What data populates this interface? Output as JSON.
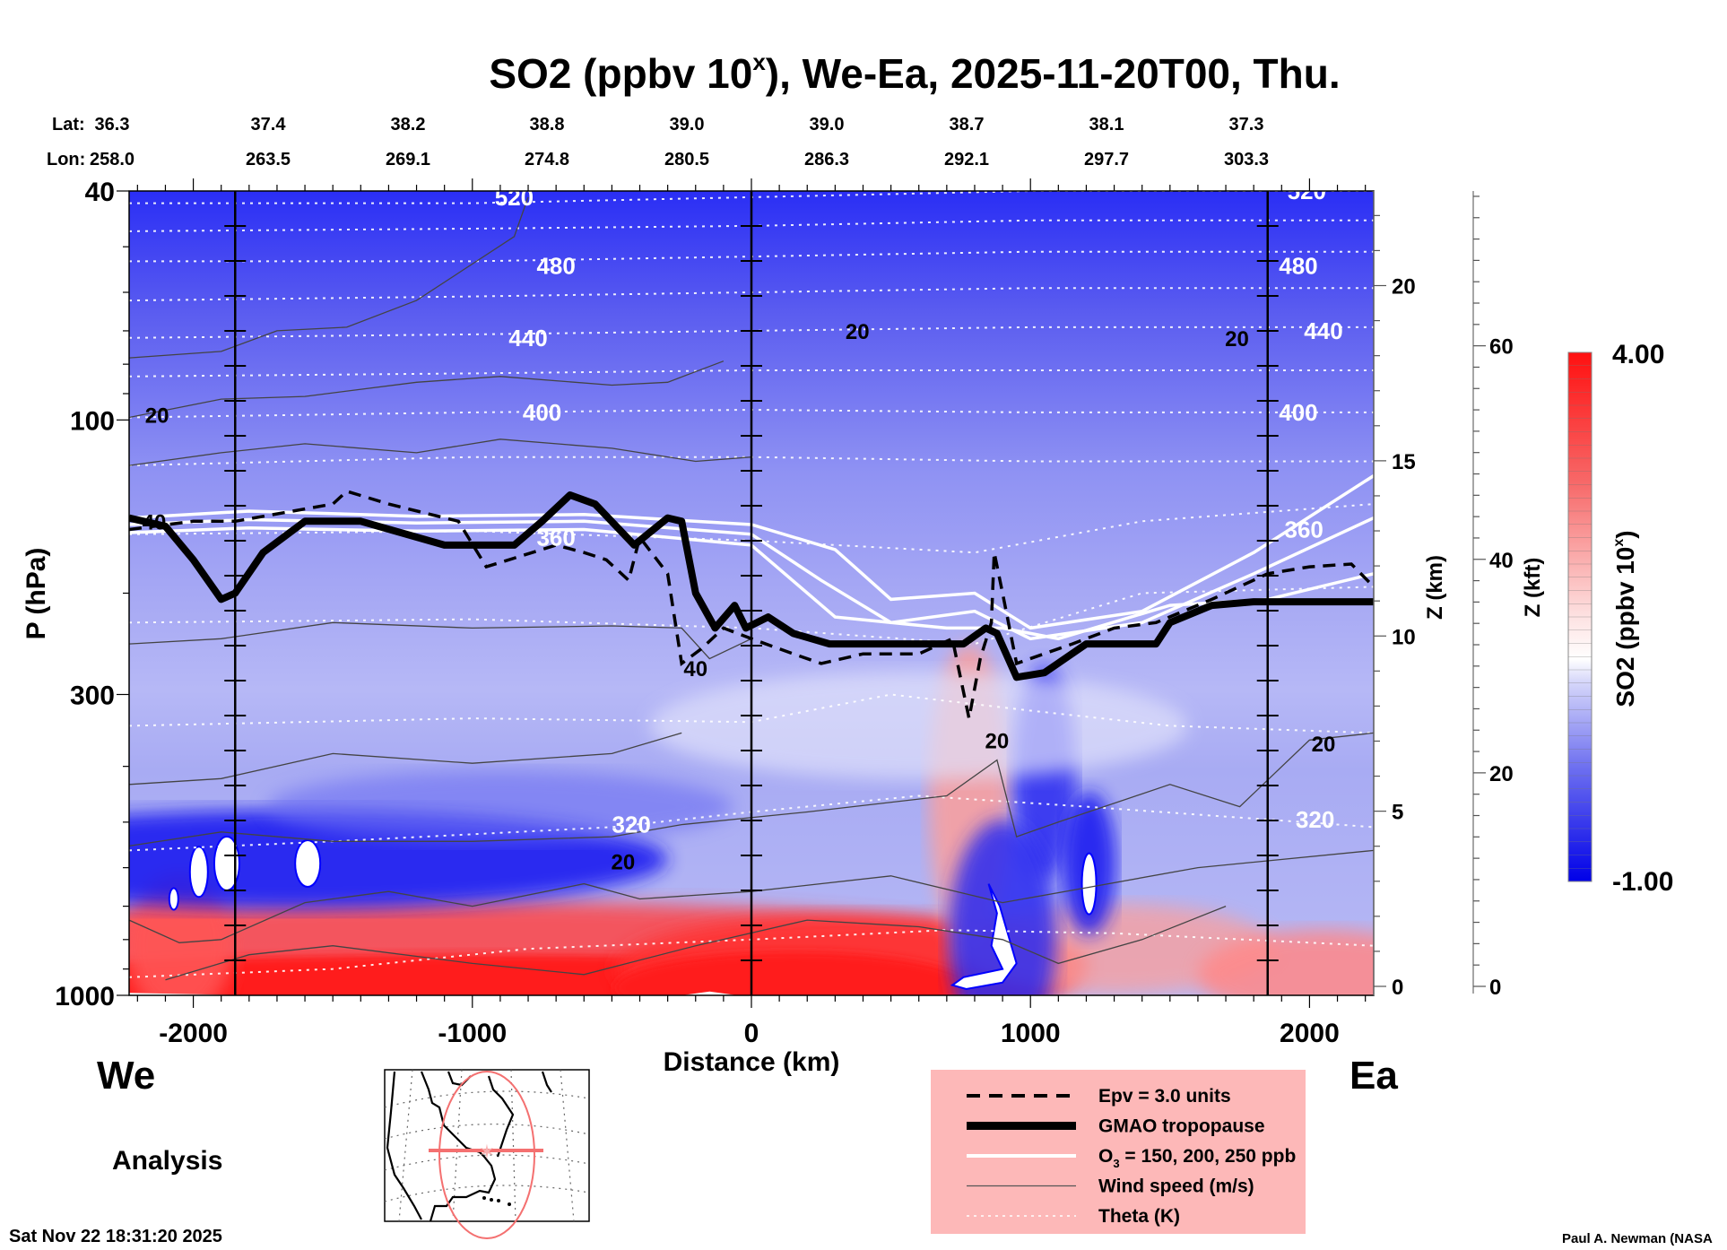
{
  "chart_data": {
    "type": "heatmap",
    "title": "SO2 (ppbv 10",
    "title_superscript": "x",
    "title_suffix": "), We-Ea, 2025-11-20T00, Thu.",
    "xlabel": "Distance (km)",
    "ylabel": "P (hPa)",
    "xlim": [
      -2230,
      2230
    ],
    "ylim": [
      1000,
      40
    ],
    "yscale": "log",
    "x_ticks": [
      -2000,
      -1000,
      0,
      1000,
      2000
    ],
    "y_ticks": [
      40,
      100,
      300,
      1000
    ],
    "right_axis_km": {
      "label": "Z (km)",
      "ticks": [
        0,
        5,
        10,
        15,
        20
      ]
    },
    "right_axis_kft": {
      "label": "Z (kft)",
      "ticks": [
        0,
        20,
        40,
        60
      ]
    },
    "colorbar": {
      "label": "SO2 (ppbv 10",
      "label_superscript": "x",
      "label_suffix": ")",
      "min": -1.0,
      "max": 4.0,
      "min_label": "-1.00",
      "max_label": "4.00",
      "low_color": "#0000ff",
      "mid_color": "#ffffff",
      "high_color": "#ff0000"
    },
    "lat_lon_header": {
      "lat_label": "Lat:",
      "lon_label": "Lon:",
      "lat": [
        "36.3",
        "37.4",
        "38.2",
        "38.8",
        "39.0",
        "39.0",
        "38.7",
        "38.1",
        "37.3"
      ],
      "lon": [
        "258.0",
        "263.5",
        "269.1",
        "274.8",
        "280.5",
        "286.3",
        "292.1",
        "297.7",
        "303.3"
      ]
    },
    "vertical_markers_km": [
      -1850,
      0,
      1850
    ],
    "theta_labels": [
      {
        "text": "520",
        "x": -850,
        "p": 41
      },
      {
        "text": "480",
        "x": -700,
        "p": 54
      },
      {
        "text": "440",
        "x": -800,
        "p": 72
      },
      {
        "text": "400",
        "x": -750,
        "p": 97
      },
      {
        "text": "360",
        "x": -700,
        "p": 160
      },
      {
        "text": "320",
        "x": -430,
        "p": 505
      },
      {
        "text": "480",
        "x": 1960,
        "p": 54
      },
      {
        "text": "440",
        "x": 2050,
        "p": 70
      },
      {
        "text": "400",
        "x": 1960,
        "p": 97
      },
      {
        "text": "360",
        "x": 1980,
        "p": 155
      },
      {
        "text": "320",
        "x": 2020,
        "p": 495
      },
      {
        "text": "520",
        "x": 1990,
        "p": 40
      }
    ],
    "wind_labels": [
      {
        "text": "20",
        "x": -2130,
        "p": 98
      },
      {
        "text": "40",
        "x": -2140,
        "p": 150
      },
      {
        "text": "40",
        "x": -200,
        "p": 270
      },
      {
        "text": "20",
        "x": -460,
        "p": 585
      },
      {
        "text": "20",
        "x": 380,
        "p": 70
      },
      {
        "text": "20",
        "x": 880,
        "p": 360
      },
      {
        "text": "20",
        "x": 1740,
        "p": 72
      },
      {
        "text": "20",
        "x": 2050,
        "p": 365
      }
    ],
    "tropopause_p": [
      [
        -2230,
        148
      ],
      [
        -2100,
        153
      ],
      [
        -2000,
        175
      ],
      [
        -1900,
        205
      ],
      [
        -1850,
        200
      ],
      [
        -1750,
        170
      ],
      [
        -1600,
        150
      ],
      [
        -1400,
        150
      ],
      [
        -1100,
        165
      ],
      [
        -850,
        165
      ],
      [
        -750,
        150
      ],
      [
        -650,
        135
      ],
      [
        -560,
        140
      ],
      [
        -420,
        165
      ],
      [
        -300,
        148
      ],
      [
        -250,
        150
      ],
      [
        -200,
        200
      ],
      [
        -130,
        230
      ],
      [
        -60,
        210
      ],
      [
        -20,
        230
      ],
      [
        60,
        220
      ],
      [
        150,
        235
      ],
      [
        280,
        245
      ],
      [
        500,
        245
      ],
      [
        760,
        245
      ],
      [
        840,
        230
      ],
      [
        880,
        235
      ],
      [
        950,
        280
      ],
      [
        1050,
        275
      ],
      [
        1200,
        245
      ],
      [
        1450,
        245
      ],
      [
        1500,
        225
      ],
      [
        1650,
        210
      ],
      [
        1800,
        207
      ],
      [
        2000,
        207
      ],
      [
        2230,
        207
      ]
    ],
    "epv_p": [
      [
        -2230,
        155
      ],
      [
        -2000,
        150
      ],
      [
        -1850,
        150
      ],
      [
        -1500,
        140
      ],
      [
        -1450,
        133
      ],
      [
        -1300,
        140
      ],
      [
        -1050,
        150
      ],
      [
        -950,
        180
      ],
      [
        -700,
        165
      ],
      [
        -600,
        170
      ],
      [
        -520,
        175
      ],
      [
        -440,
        190
      ],
      [
        -400,
        160
      ],
      [
        -300,
        185
      ],
      [
        -250,
        265
      ],
      [
        -180,
        250
      ],
      [
        -100,
        230
      ],
      [
        0,
        240
      ],
      [
        150,
        255
      ],
      [
        250,
        265
      ],
      [
        400,
        255
      ],
      [
        600,
        255
      ],
      [
        720,
        240
      ],
      [
        780,
        330
      ],
      [
        820,
        260
      ],
      [
        860,
        225
      ],
      [
        870,
        170
      ],
      [
        900,
        200
      ],
      [
        950,
        265
      ],
      [
        1150,
        245
      ],
      [
        1300,
        230
      ],
      [
        1450,
        225
      ],
      [
        1650,
        205
      ],
      [
        1850,
        185
      ],
      [
        2000,
        180
      ],
      [
        2150,
        178
      ],
      [
        2230,
        195
      ]
    ],
    "ozone_isolines_p": [
      [
        [
          -2230,
          148
        ],
        [
          -1800,
          144
        ],
        [
          -1200,
          147
        ],
        [
          -600,
          146
        ],
        [
          0,
          152
        ],
        [
          300,
          168
        ],
        [
          500,
          205
        ],
        [
          800,
          200
        ],
        [
          1000,
          230
        ],
        [
          1400,
          215
        ],
        [
          1800,
          170
        ],
        [
          2230,
          125
        ]
      ],
      [
        [
          -2230,
          152
        ],
        [
          -1800,
          149
        ],
        [
          -1200,
          151
        ],
        [
          -600,
          150
        ],
        [
          0,
          158
        ],
        [
          250,
          190
        ],
        [
          500,
          225
        ],
        [
          800,
          215
        ],
        [
          1000,
          240
        ],
        [
          1400,
          225
        ],
        [
          1800,
          185
        ],
        [
          2230,
          148
        ]
      ],
      [
        [
          -2230,
          157
        ],
        [
          -1800,
          154
        ],
        [
          -1200,
          156
        ],
        [
          -600,
          155
        ],
        [
          0,
          165
        ],
        [
          300,
          220
        ],
        [
          700,
          230
        ],
        [
          900,
          230
        ],
        [
          1100,
          240
        ],
        [
          1500,
          210
        ],
        [
          1850,
          205
        ],
        [
          2230,
          185
        ]
      ]
    ],
    "theta_isolines_p": [
      [
        [
          -2230,
          42
        ],
        [
          -1000,
          42
        ],
        [
          0,
          41
        ],
        [
          1000,
          40
        ],
        [
          2230,
          40
        ]
      ],
      [
        [
          -2230,
          47
        ],
        [
          -1000,
          46.5
        ],
        [
          0,
          46
        ],
        [
          1000,
          45
        ],
        [
          2230,
          45
        ]
      ],
      [
        [
          -2230,
          53
        ],
        [
          -1000,
          53
        ],
        [
          0,
          52
        ],
        [
          1000,
          51
        ],
        [
          2230,
          51
        ]
      ],
      [
        [
          -2230,
          62
        ],
        [
          -1000,
          61
        ],
        [
          0,
          60
        ],
        [
          1000,
          59
        ],
        [
          2230,
          59
        ]
      ],
      [
        [
          -2230,
          72
        ],
        [
          -1000,
          71
        ],
        [
          0,
          70
        ],
        [
          1000,
          69
        ],
        [
          2230,
          69
        ]
      ],
      [
        [
          -2230,
          84
        ],
        [
          -1000,
          83
        ],
        [
          0,
          82
        ],
        [
          1000,
          82
        ],
        [
          2230,
          82
        ]
      ],
      [
        [
          -2230,
          99
        ],
        [
          -1000,
          97
        ],
        [
          0,
          96
        ],
        [
          1000,
          97
        ],
        [
          2230,
          97
        ]
      ],
      [
        [
          -2230,
          120
        ],
        [
          -1000,
          116
        ],
        [
          0,
          116
        ],
        [
          1000,
          118
        ],
        [
          2230,
          118
        ]
      ],
      [
        [
          -2230,
          158
        ],
        [
          -1000,
          156
        ],
        [
          0,
          162
        ],
        [
          800,
          170
        ],
        [
          1400,
          150
        ],
        [
          2230,
          140
        ]
      ],
      [
        [
          -2230,
          225
        ],
        [
          -1000,
          222
        ],
        [
          0,
          230
        ],
        [
          800,
          245
        ],
        [
          1400,
          200
        ],
        [
          2230,
          195
        ]
      ],
      [
        [
          -2230,
          340
        ],
        [
          -1000,
          330
        ],
        [
          0,
          335
        ],
        [
          500,
          300
        ],
        [
          1000,
          320
        ],
        [
          1500,
          340
        ],
        [
          2230,
          350
        ]
      ],
      [
        [
          -2230,
          560
        ],
        [
          -1500,
          540
        ],
        [
          -500,
          510
        ],
        [
          0,
          480
        ],
        [
          600,
          450
        ],
        [
          1200,
          470
        ],
        [
          2230,
          510
        ]
      ],
      [
        [
          -2230,
          930
        ],
        [
          -1500,
          900
        ],
        [
          -800,
          830
        ],
        [
          0,
          800
        ],
        [
          700,
          770
        ],
        [
          1300,
          780
        ],
        [
          2230,
          820
        ]
      ]
    ],
    "wind_isolines_p": [
      [
        [
          -2230,
          78
        ],
        [
          -1900,
          76
        ],
        [
          -1700,
          70
        ],
        [
          -1450,
          69
        ],
        [
          -1200,
          62
        ],
        [
          -850,
          48
        ],
        [
          -800,
          41
        ]
      ],
      [
        [
          -2230,
          99
        ],
        [
          -1900,
          92
        ],
        [
          -1600,
          91
        ],
        [
          -1200,
          86
        ],
        [
          -900,
          84
        ],
        [
          -500,
          87
        ],
        [
          -300,
          86
        ],
        [
          -100,
          79
        ]
      ],
      [
        [
          -2230,
          120
        ],
        [
          -1900,
          114
        ],
        [
          -1600,
          110
        ],
        [
          -1200,
          114
        ],
        [
          -900,
          108
        ],
        [
          -500,
          112
        ],
        [
          -200,
          118
        ],
        [
          0,
          116
        ]
      ],
      [
        [
          -2230,
          245
        ],
        [
          -1900,
          240
        ],
        [
          -1500,
          225
        ],
        [
          -1000,
          230
        ],
        [
          -500,
          228
        ],
        [
          -250,
          230
        ],
        [
          -150,
          260
        ],
        [
          0,
          240
        ]
      ],
      [
        [
          -2230,
          430
        ],
        [
          -1900,
          420
        ],
        [
          -1500,
          380
        ],
        [
          -1000,
          395
        ],
        [
          -500,
          380
        ],
        [
          -250,
          350
        ]
      ],
      [
        [
          -2230,
          550
        ],
        [
          -1900,
          520
        ],
        [
          -1500,
          540
        ],
        [
          -1000,
          540
        ],
        [
          -500,
          530
        ],
        [
          -250,
          505
        ],
        [
          200,
          480
        ],
        [
          700,
          450
        ],
        [
          880,
          390
        ],
        [
          950,
          530
        ],
        [
          1100,
          500
        ],
        [
          1500,
          430
        ],
        [
          1750,
          470
        ],
        [
          2000,
          360
        ],
        [
          2230,
          350
        ]
      ],
      [
        [
          -2230,
          740
        ],
        [
          -2050,
          810
        ],
        [
          -1900,
          800
        ],
        [
          -1600,
          690
        ],
        [
          -1300,
          660
        ],
        [
          -1000,
          700
        ],
        [
          -600,
          640
        ],
        [
          -400,
          680
        ],
        [
          0,
          660
        ],
        [
          500,
          620
        ],
        [
          900,
          690
        ],
        [
          1200,
          650
        ],
        [
          1600,
          600
        ],
        [
          2230,
          560
        ]
      ],
      [
        [
          -2100,
          940
        ],
        [
          -1800,
          850
        ],
        [
          -1500,
          820
        ],
        [
          -1000,
          880
        ],
        [
          -600,
          920
        ],
        [
          -200,
          820
        ],
        [
          200,
          740
        ],
        [
          600,
          760
        ],
        [
          900,
          800
        ],
        [
          1100,
          880
        ],
        [
          1400,
          800
        ],
        [
          1700,
          700
        ]
      ]
    ],
    "so2_features": [
      {
        "kind": "high",
        "x_range": [
          -2230,
          0
        ],
        "p_range": [
          700,
          1000
        ],
        "note": "surface red layer west"
      },
      {
        "kind": "high",
        "x_range": [
          0,
          800
        ],
        "p_range": [
          720,
          1000
        ],
        "note": "surface red layer central"
      },
      {
        "kind": "high",
        "x_range": [
          700,
          900
        ],
        "p_range": [
          250,
          800
        ],
        "note": "rising plume"
      },
      {
        "kind": "low",
        "x_range": [
          -2230,
          -1300
        ],
        "p_range": [
          500,
          720
        ],
        "note": "blue band west"
      },
      {
        "kind": "low",
        "x_range": [
          950,
          1300
        ],
        "p_range": [
          300,
          700
        ],
        "note": "blue columns"
      }
    ]
  },
  "labels": {
    "we": "We",
    "ea": "Ea",
    "analysis": "Analysis",
    "timestamp": "Sat Nov 22 18:31:20 2025",
    "credit": "Paul A. Newman (NASA"
  },
  "legend": {
    "background": "#fdb8b8",
    "items": [
      {
        "label": "Epv = 3.0 units",
        "style": "dashed"
      },
      {
        "label": "GMAO tropopause",
        "style": "thick"
      },
      {
        "label": "O",
        "sub": "3",
        "label_suffix": " = 150, 200, 250 ppb",
        "style": "white"
      },
      {
        "label": "Wind speed (m/s)",
        "style": "thin"
      },
      {
        "label": "Theta (K)",
        "style": "dotted"
      }
    ]
  }
}
